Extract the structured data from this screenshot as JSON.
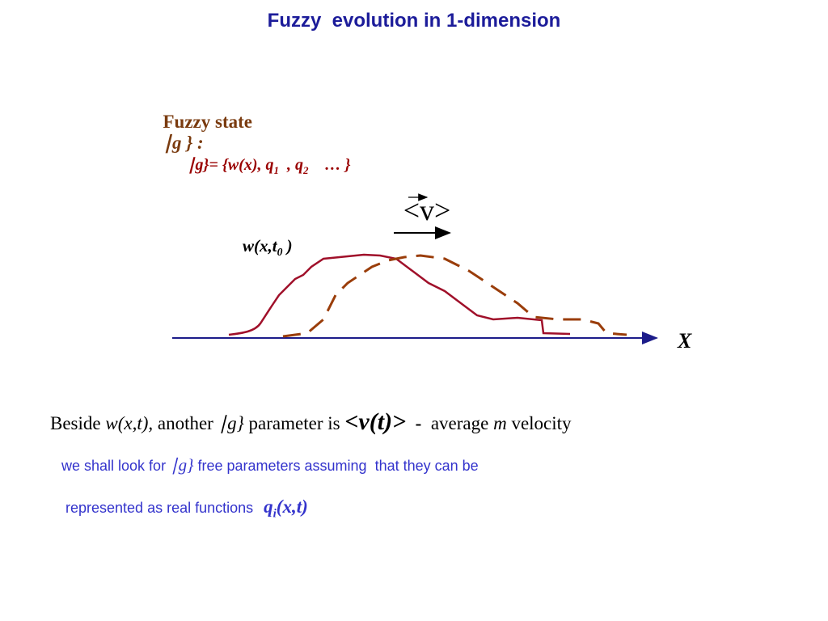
{
  "title": "Fuzzy  evolution in 1-dimension",
  "state_line": {
    "label": "Fuzzy state",
    "ket": "∣g } :",
    "definition": [
      "∣g}= {w(x), q",
      "1",
      "  , q",
      "2",
      "    … }"
    ]
  },
  "diagram": {
    "velocity": "<v>",
    "curve_label": [
      "w(x,t",
      "0",
      " )"
    ],
    "axis_label": "X"
  },
  "text_lines": [
    [
      "Beside ",
      "w(x,t),",
      " another ",
      "∣g}",
      " parameter is ",
      "<v(t)>",
      "  -  ",
      "average ",
      "m",
      " velocity"
    ],
    [
      "we shall look for ",
      "∣g}",
      " free parameters assuming  that they can be"
    ],
    [
      "represented as real functions ",
      "q",
      "i",
      "(x,t)"
    ]
  ]
}
